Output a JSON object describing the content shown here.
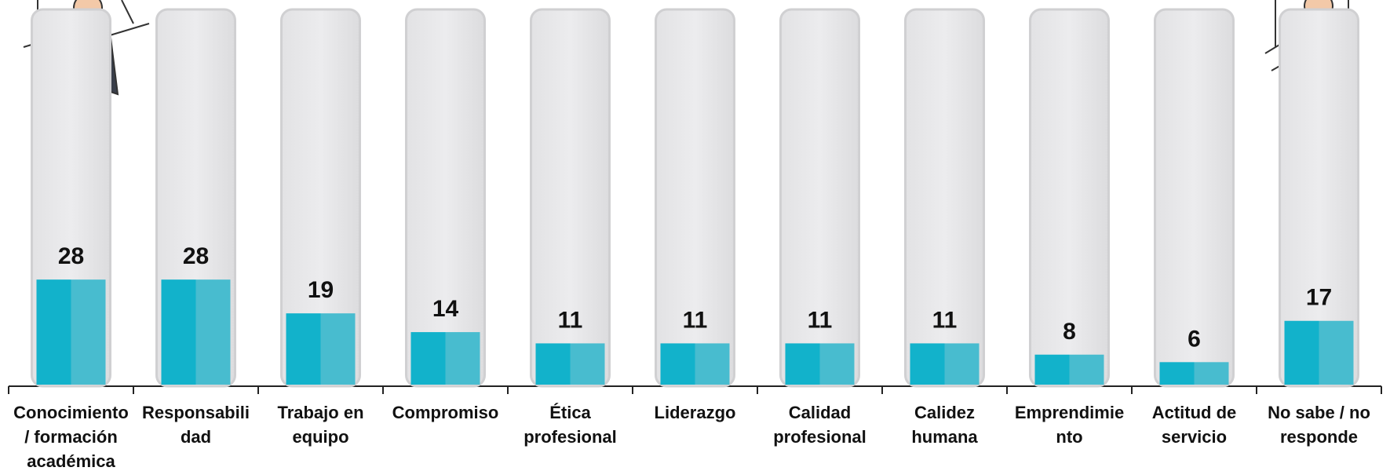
{
  "chart_data": {
    "type": "bar",
    "categories": [
      "Conocimiento / formación académica",
      "Responsabilidad",
      "Trabajo en equipo",
      "Compromiso",
      "Ética profesional",
      "Liderazgo",
      "Calidad profesional",
      "Calidez humana",
      "Emprendimiento",
      "Actitud de servicio",
      "No sabe / no responde"
    ],
    "values": [
      28,
      28,
      19,
      14,
      11,
      11,
      11,
      11,
      8,
      6,
      17
    ],
    "colors": [
      "#12b2cb",
      "#48bccf"
    ],
    "ylim": [
      0,
      100
    ]
  }
}
